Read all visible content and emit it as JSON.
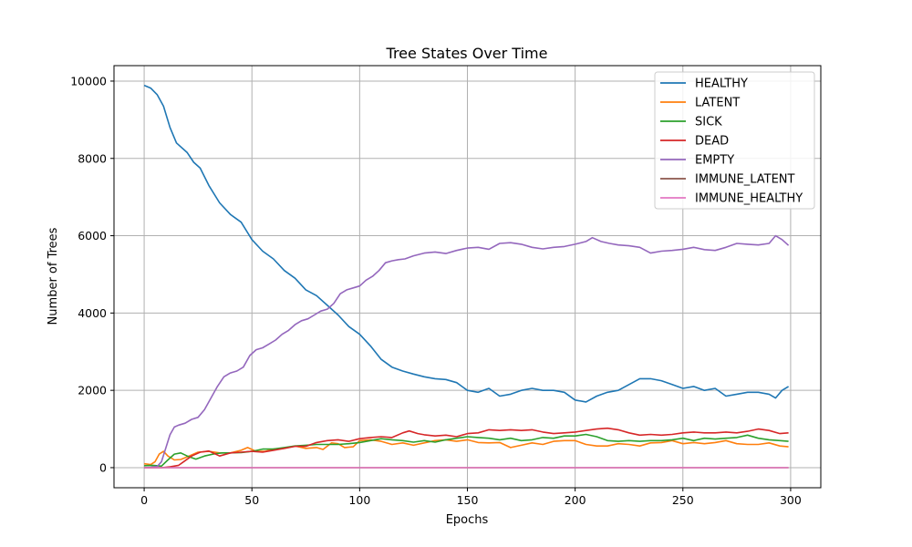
{
  "chart_data": {
    "type": "line",
    "title": "Tree States Over Time",
    "xlabel": "Epochs",
    "ylabel": "Number of Trees",
    "xlim": [
      -14,
      314
    ],
    "ylim": [
      -520,
      10400
    ],
    "xticks": [
      0,
      50,
      100,
      150,
      200,
      250,
      300
    ],
    "yticks": [
      0,
      2000,
      4000,
      6000,
      8000,
      10000
    ],
    "grid": true,
    "legend_position": "top-right",
    "series": [
      {
        "name": "HEALTHY",
        "color": "#1f77b4",
        "x": [
          0,
          3,
          6,
          9,
          12,
          15,
          20,
          23,
          26,
          30,
          35,
          40,
          45,
          50,
          55,
          60,
          65,
          70,
          75,
          80,
          85,
          90,
          95,
          100,
          105,
          110,
          115,
          120,
          125,
          130,
          135,
          140,
          145,
          150,
          155,
          160,
          165,
          170,
          175,
          180,
          185,
          190,
          195,
          200,
          205,
          210,
          215,
          220,
          225,
          230,
          235,
          240,
          245,
          250,
          255,
          260,
          265,
          270,
          275,
          280,
          285,
          290,
          293,
          296,
          299
        ],
        "y": [
          9890,
          9820,
          9650,
          9350,
          8800,
          8400,
          8150,
          7900,
          7750,
          7300,
          6850,
          6550,
          6350,
          5900,
          5600,
          5400,
          5100,
          4900,
          4600,
          4450,
          4200,
          3950,
          3650,
          3450,
          3150,
          2800,
          2600,
          2500,
          2420,
          2350,
          2300,
          2280,
          2200,
          2000,
          1950,
          2050,
          1850,
          1900,
          2000,
          2050,
          2000,
          2000,
          1950,
          1750,
          1700,
          1850,
          1950,
          2000,
          2150,
          2300,
          2300,
          2250,
          2150,
          2050,
          2100,
          2000,
          2050,
          1850,
          1900,
          1950,
          1950,
          1900,
          1800,
          2000,
          2100
        ]
      },
      {
        "name": "LATENT",
        "color": "#ff7f0e",
        "x": [
          0,
          3,
          5,
          7,
          9,
          11,
          14,
          17,
          20,
          25,
          30,
          35,
          40,
          45,
          48,
          52,
          56,
          60,
          65,
          70,
          75,
          80,
          83,
          87,
          90,
          93,
          97,
          100,
          105,
          110,
          115,
          120,
          125,
          130,
          135,
          140,
          145,
          150,
          155,
          160,
          165,
          170,
          175,
          180,
          185,
          190,
          195,
          200,
          205,
          210,
          215,
          220,
          225,
          230,
          235,
          240,
          245,
          250,
          255,
          260,
          265,
          270,
          275,
          280,
          285,
          290,
          295,
          299
        ],
        "y": [
          100,
          80,
          150,
          350,
          420,
          300,
          200,
          210,
          280,
          400,
          420,
          380,
          380,
          450,
          520,
          420,
          420,
          480,
          500,
          560,
          500,
          520,
          470,
          640,
          620,
          520,
          540,
          700,
          720,
          680,
          600,
          640,
          580,
          640,
          700,
          720,
          680,
          720,
          650,
          640,
          650,
          520,
          580,
          640,
          600,
          680,
          700,
          700,
          600,
          560,
          560,
          620,
          600,
          560,
          640,
          650,
          700,
          620,
          650,
          620,
          650,
          700,
          620,
          600,
          600,
          640,
          560,
          540
        ]
      },
      {
        "name": "SICK",
        "color": "#2ca02c",
        "x": [
          0,
          4,
          8,
          11,
          14,
          17,
          20,
          24,
          28,
          32,
          36,
          40,
          45,
          50,
          55,
          60,
          65,
          70,
          75,
          80,
          85,
          90,
          95,
          100,
          105,
          110,
          115,
          120,
          125,
          130,
          135,
          140,
          145,
          150,
          155,
          160,
          165,
          170,
          175,
          180,
          185,
          190,
          195,
          200,
          205,
          210,
          215,
          220,
          225,
          230,
          235,
          240,
          245,
          250,
          255,
          260,
          265,
          270,
          275,
          280,
          285,
          290,
          295,
          299
        ],
        "y": [
          50,
          60,
          40,
          200,
          350,
          380,
          300,
          220,
          300,
          350,
          380,
          380,
          390,
          420,
          480,
          480,
          520,
          560,
          580,
          600,
          600,
          600,
          620,
          650,
          700,
          750,
          720,
          700,
          660,
          700,
          660,
          720,
          760,
          800,
          780,
          760,
          720,
          760,
          700,
          720,
          780,
          760,
          820,
          820,
          860,
          800,
          700,
          680,
          700,
          680,
          700,
          700,
          720,
          760,
          700,
          760,
          740,
          760,
          780,
          840,
          760,
          720,
          700,
          680
        ]
      },
      {
        "name": "DEAD",
        "color": "#d62728",
        "x": [
          0,
          4,
          8,
          12,
          16,
          19,
          22,
          26,
          30,
          35,
          40,
          45,
          50,
          55,
          60,
          65,
          70,
          75,
          80,
          85,
          90,
          95,
          100,
          105,
          110,
          115,
          120,
          123,
          127,
          130,
          135,
          140,
          145,
          150,
          155,
          160,
          165,
          170,
          175,
          180,
          185,
          190,
          195,
          200,
          205,
          210,
          215,
          220,
          225,
          230,
          235,
          240,
          245,
          250,
          255,
          260,
          265,
          270,
          275,
          280,
          285,
          290,
          295,
          299
        ],
        "y": [
          0,
          0,
          0,
          20,
          60,
          180,
          300,
          400,
          430,
          300,
          380,
          400,
          420,
          400,
          450,
          500,
          550,
          550,
          650,
          700,
          720,
          680,
          750,
          780,
          800,
          780,
          900,
          950,
          880,
          850,
          820,
          840,
          800,
          880,
          900,
          980,
          960,
          980,
          960,
          980,
          920,
          880,
          900,
          920,
          960,
          1000,
          1020,
          980,
          900,
          840,
          860,
          840,
          860,
          900,
          920,
          900,
          900,
          920,
          900,
          940,
          1000,
          960,
          880,
          900
        ]
      },
      {
        "name": "EMPTY",
        "color": "#9467bd",
        "x": [
          0,
          3,
          6,
          8,
          10,
          12,
          14,
          16,
          19,
          22,
          25,
          28,
          31,
          34,
          37,
          40,
          43,
          46,
          49,
          52,
          55,
          58,
          61,
          64,
          67,
          70,
          73,
          76,
          79,
          82,
          85,
          88,
          91,
          94,
          97,
          100,
          103,
          106,
          109,
          112,
          115,
          118,
          121,
          125,
          130,
          135,
          140,
          145,
          150,
          155,
          160,
          165,
          170,
          175,
          180,
          185,
          190,
          195,
          200,
          205,
          208,
          212,
          216,
          220,
          225,
          230,
          235,
          240,
          245,
          250,
          255,
          260,
          265,
          270,
          275,
          280,
          285,
          290,
          293,
          296,
          299
        ],
        "y": [
          0,
          10,
          30,
          150,
          500,
          850,
          1050,
          1100,
          1150,
          1250,
          1300,
          1500,
          1800,
          2100,
          2350,
          2450,
          2500,
          2600,
          2900,
          3050,
          3100,
          3200,
          3300,
          3450,
          3550,
          3700,
          3800,
          3850,
          3950,
          4050,
          4100,
          4250,
          4500,
          4600,
          4650,
          4700,
          4850,
          4950,
          5100,
          5300,
          5350,
          5380,
          5400,
          5480,
          5550,
          5580,
          5540,
          5620,
          5680,
          5700,
          5650,
          5800,
          5820,
          5780,
          5700,
          5660,
          5700,
          5720,
          5780,
          5850,
          5950,
          5850,
          5800,
          5760,
          5740,
          5700,
          5550,
          5600,
          5620,
          5650,
          5700,
          5640,
          5620,
          5700,
          5800,
          5780,
          5760,
          5800,
          6000,
          5900,
          5750
        ]
      },
      {
        "name": "IMMUNE_LATENT",
        "color": "#8c564b",
        "x": [
          0,
          299
        ],
        "y": [
          0,
          0
        ]
      },
      {
        "name": "IMMUNE_HEALTHY",
        "color": "#e377c2",
        "x": [
          0,
          299
        ],
        "y": [
          0,
          0
        ]
      }
    ]
  }
}
